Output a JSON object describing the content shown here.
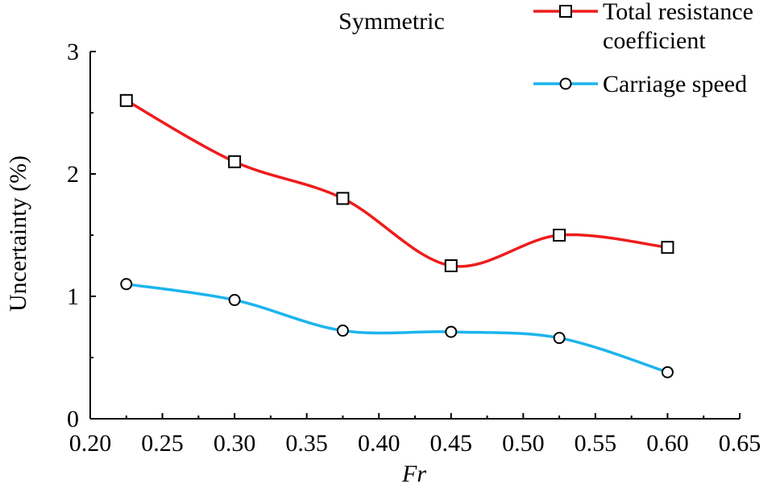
{
  "chart_data": {
    "type": "line",
    "title": "Symmetric",
    "xlabel": "Fr",
    "ylabel": "Uncertainty (%)",
    "xlim": [
      0.2,
      0.65
    ],
    "ylim": [
      0,
      3
    ],
    "x_ticks": [
      "0.20",
      "0.25",
      "0.30",
      "0.35",
      "0.40",
      "0.45",
      "0.50",
      "0.55",
      "0.60",
      "0.65"
    ],
    "y_ticks": [
      "0",
      "1",
      "2",
      "3"
    ],
    "grid": false,
    "legend_position": "top-right",
    "series": [
      {
        "name": "Total resistance coefficient",
        "legend_lines": [
          "Total resistance",
          "coefficient"
        ],
        "color": "#ee1c1c",
        "marker": "square",
        "x": [
          0.225,
          0.3,
          0.375,
          0.45,
          0.525,
          0.6
        ],
        "values": [
          2.6,
          2.1,
          1.8,
          1.25,
          1.5,
          1.4
        ]
      },
      {
        "name": "Carriage speed",
        "legend_lines": [
          "Carriage speed"
        ],
        "color": "#1cb4ee",
        "marker": "circle",
        "x": [
          0.225,
          0.3,
          0.375,
          0.45,
          0.525,
          0.6
        ],
        "values": [
          1.1,
          0.97,
          0.72,
          0.71,
          0.66,
          0.38
        ]
      }
    ]
  }
}
